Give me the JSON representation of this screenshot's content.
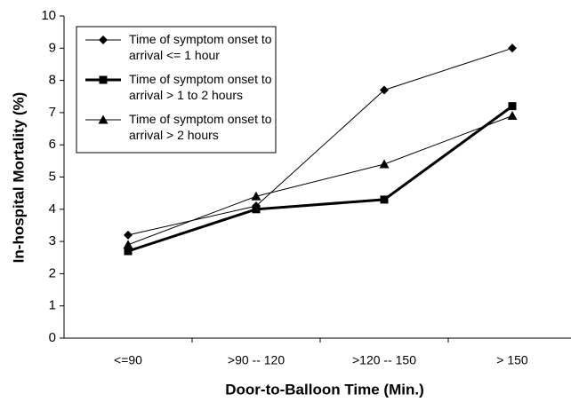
{
  "chart_data": {
    "type": "line",
    "x_label": "Door-to-Balloon Time (Min.)",
    "y_label": "In-hospital Mortality (%)",
    "categories": [
      "<=90",
      ">90 -- 120",
      ">120 -- 150",
      "> 150"
    ],
    "series": [
      {
        "name": "Time of symptom onset to arrival <= 1 hour",
        "color": "#000000",
        "marker": "diamond",
        "line_width": 1,
        "values": [
          3.2,
          4.1,
          7.7,
          9.0
        ]
      },
      {
        "name": "Time of symptom onset to arrival > 1 to 2 hours",
        "color": "#000000",
        "marker": "square",
        "line_width": 3,
        "values": [
          2.7,
          4.0,
          4.3,
          7.2
        ]
      },
      {
        "name": "Time of symptom onset to arrival > 2 hours",
        "color": "#000000",
        "marker": "triangle",
        "line_width": 1,
        "values": [
          2.9,
          4.4,
          5.4,
          6.9
        ]
      }
    ],
    "ylim": [
      0,
      10
    ],
    "yticks": [
      0,
      1,
      2,
      3,
      4,
      5,
      6,
      7,
      8,
      9,
      10
    ],
    "grid": false,
    "legend": "upper left"
  }
}
